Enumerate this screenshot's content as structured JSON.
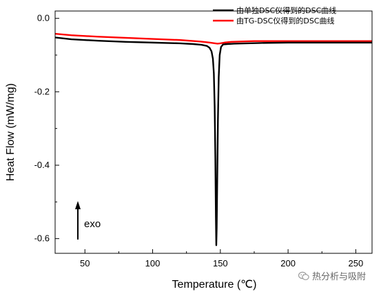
{
  "chart_data": {
    "type": "line",
    "xlabel": "Temperature (℃)",
    "ylabel": "Heat Flow (mW/mg)",
    "xlim": [
      28,
      262
    ],
    "ylim": [
      -0.64,
      0.02
    ],
    "xticks": [
      50,
      100,
      150,
      200,
      250
    ],
    "yticks": [
      0.0,
      -0.2,
      -0.4,
      -0.6
    ],
    "ytick_labels": [
      "0.0",
      "-0.2",
      "-0.4",
      "-0.6"
    ],
    "grid": false,
    "legend_position": "top-right",
    "series": [
      {
        "name": "由单独DSC仪得到的DSC曲线",
        "color": "#000000",
        "x": [
          28,
          40,
          60,
          80,
          100,
          120,
          130,
          136,
          140,
          142,
          143.5,
          144.5,
          145.2,
          145.8,
          146.3,
          146.7,
          147.0,
          147.3,
          147.7,
          148.2,
          148.8,
          149.5,
          150.5,
          152,
          155,
          160,
          170,
          180,
          200,
          220,
          240,
          262
        ],
        "y": [
          -0.052,
          -0.057,
          -0.061,
          -0.064,
          -0.066,
          -0.068,
          -0.07,
          -0.072,
          -0.075,
          -0.08,
          -0.09,
          -0.11,
          -0.15,
          -0.24,
          -0.38,
          -0.54,
          -0.618,
          -0.57,
          -0.44,
          -0.28,
          -0.16,
          -0.1,
          -0.078,
          -0.071,
          -0.07,
          -0.069,
          -0.068,
          -0.067,
          -0.066,
          -0.066,
          -0.066,
          -0.066
        ]
      },
      {
        "name": "由TG-DSC仪得到的DSC曲线",
        "color": "#ff0000",
        "x": [
          28,
          40,
          60,
          80,
          100,
          120,
          135,
          142,
          146,
          148,
          150,
          153,
          158,
          165,
          175,
          190,
          200,
          220,
          240,
          262
        ],
        "y": [
          -0.042,
          -0.046,
          -0.05,
          -0.053,
          -0.056,
          -0.059,
          -0.063,
          -0.066,
          -0.068,
          -0.069,
          -0.068,
          -0.066,
          -0.064,
          -0.063,
          -0.062,
          -0.062,
          -0.062,
          -0.062,
          -0.062,
          -0.062
        ]
      }
    ],
    "annotation": {
      "label": "exo",
      "arrow": "up"
    }
  },
  "watermark": {
    "text": "热分析与吸附",
    "icon": "wechat-icon"
  }
}
